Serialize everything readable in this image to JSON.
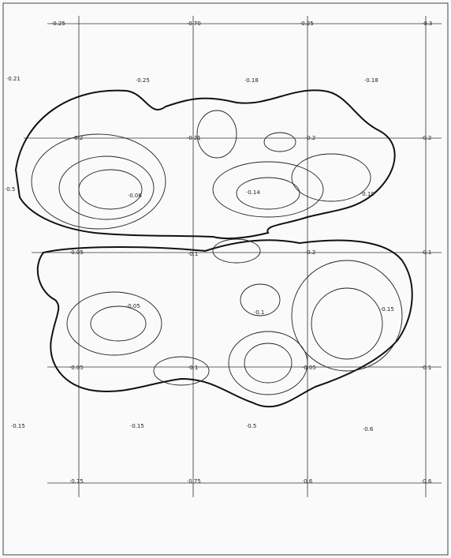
{
  "labels": [
    "·0.25",
    "·0.70",
    "·0.25",
    "·0.3",
    "·0.21",
    "·0.25",
    "·0.18",
    "·0.18",
    "·0.2",
    "·0.21",
    "·0.2",
    "·0.2",
    "·0.5",
    "·0.06",
    "·0.14",
    "·0.19",
    "·0.05",
    "·0.1",
    "·0.2",
    "·0.1",
    "·0.05",
    "·0.1",
    "·0.15",
    "·0.05",
    "·0.1",
    "·0.05",
    "·0.1",
    "·0.15",
    "·0.15",
    "·0.5",
    "·0.6",
    "·0.75",
    "·0.75",
    "·0.6",
    "·0.6"
  ]
}
